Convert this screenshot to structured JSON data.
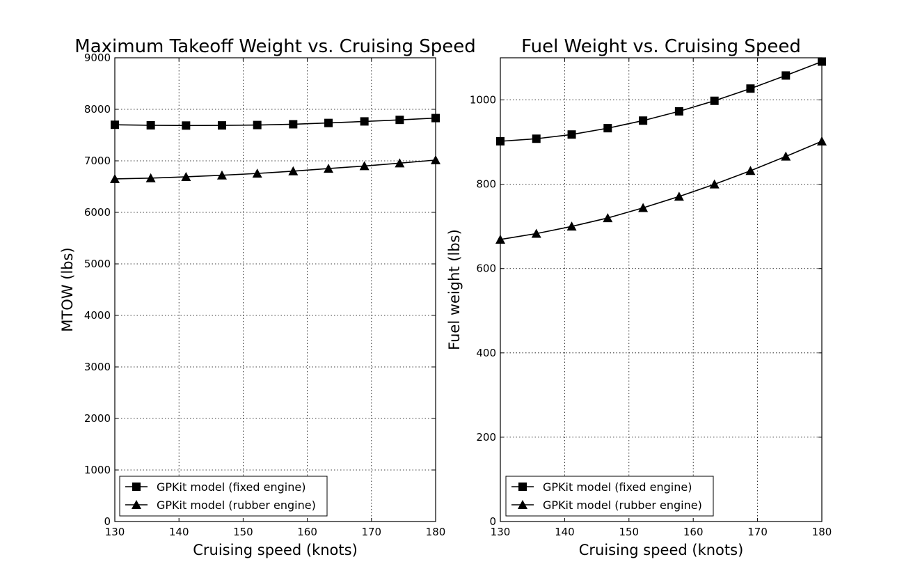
{
  "chart_data": [
    {
      "type": "line",
      "title": "Maximum Takeoff Weight vs. Cruising Speed",
      "xlabel": "Cruising speed (knots)",
      "ylabel": "MTOW (lbs)",
      "xlim": [
        130,
        180
      ],
      "ylim": [
        0,
        9000
      ],
      "xticks": [
        "130",
        "140",
        "150",
        "160",
        "170",
        "180"
      ],
      "yticks": [
        "0",
        "1000",
        "2000",
        "3000",
        "4000",
        "5000",
        "6000",
        "7000",
        "8000",
        "9000"
      ],
      "grid": true,
      "legend_position": "lower-left",
      "x": [
        130,
        135.6,
        141.1,
        146.7,
        152.2,
        157.8,
        163.3,
        168.9,
        174.4,
        180
      ],
      "series": [
        {
          "name": "GPKit model (fixed engine)",
          "marker": "square",
          "values": [
            7700,
            7690,
            7685,
            7688,
            7695,
            7710,
            7735,
            7765,
            7795,
            7830
          ]
        },
        {
          "name": "GPKit model (rubber engine)",
          "marker": "triangle",
          "values": [
            6650,
            6665,
            6690,
            6720,
            6755,
            6800,
            6850,
            6900,
            6955,
            7015
          ]
        }
      ]
    },
    {
      "type": "line",
      "title": "Fuel Weight vs. Cruising Speed",
      "xlabel": "Cruising speed (knots)",
      "ylabel": "Fuel weight (lbs)",
      "xlim": [
        130,
        180
      ],
      "ylim": [
        0,
        1100
      ],
      "xticks": [
        "130",
        "140",
        "150",
        "160",
        "170",
        "180"
      ],
      "yticks": [
        "0",
        "200",
        "400",
        "600",
        "800",
        "1000"
      ],
      "grid": true,
      "legend_position": "lower-left",
      "x": [
        130,
        135.6,
        141.1,
        146.7,
        152.2,
        157.8,
        163.3,
        168.9,
        174.4,
        180
      ],
      "series": [
        {
          "name": "GPKit model (fixed engine)",
          "marker": "square",
          "values": [
            902,
            908,
            918,
            933,
            951,
            973,
            998,
            1027,
            1058,
            1091
          ]
        },
        {
          "name": "GPKit model (rubber engine)",
          "marker": "triangle",
          "values": [
            669,
            683,
            700,
            720,
            744,
            771,
            800,
            832,
            866,
            902
          ]
        }
      ]
    }
  ]
}
